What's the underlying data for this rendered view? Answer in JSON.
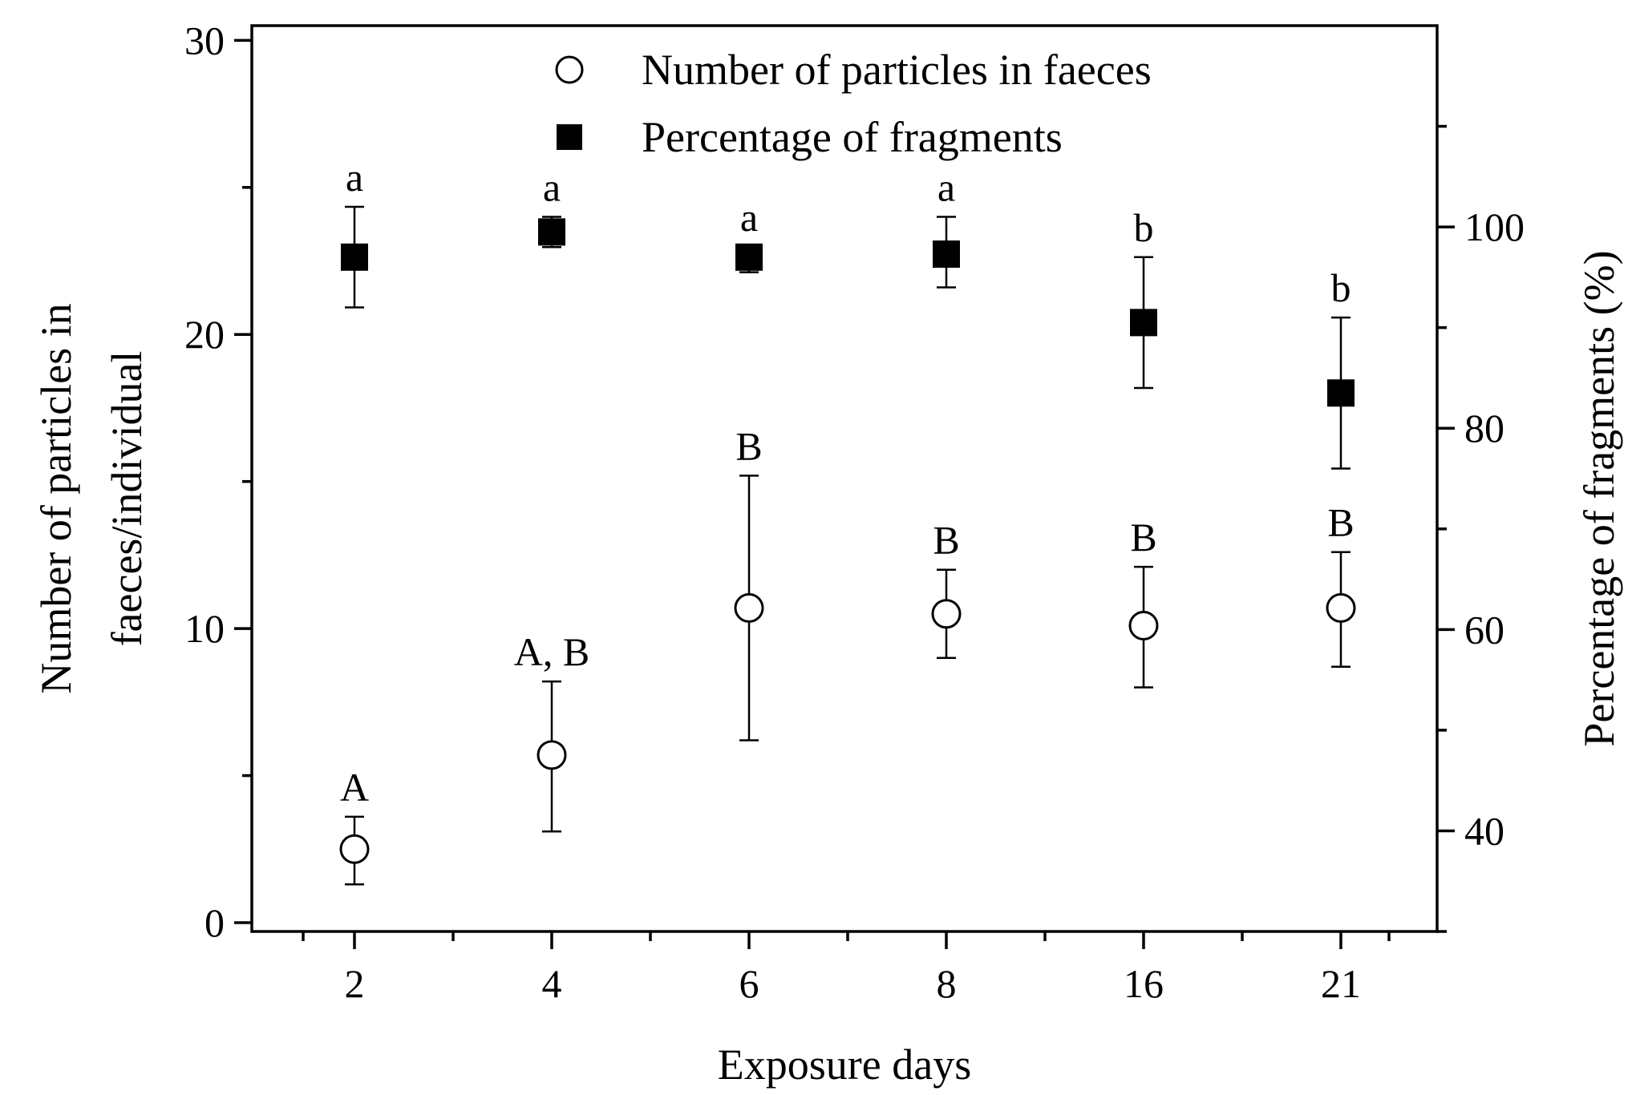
{
  "chart_data": {
    "type": "scatter",
    "x_categories": [
      "2",
      "4",
      "6",
      "8",
      "16",
      "21"
    ],
    "xlabel": "Exposure days",
    "ylabel_left_line1": "Number of particles in",
    "ylabel_left_line2": "faeces/individual",
    "ylabel_right": "Percentage of fragments (%)",
    "y_left": {
      "ylim": [
        -0.3,
        30.5
      ],
      "ticks": [
        0,
        10,
        20,
        30
      ],
      "minor_ticks": [
        5,
        15,
        25
      ]
    },
    "y_right": {
      "ylim": [
        30,
        120
      ],
      "ticks": [
        40,
        60,
        80,
        100
      ],
      "minor_ticks": [
        30,
        50,
        70,
        90,
        110
      ]
    },
    "legend_position": "top",
    "grid": false,
    "series": [
      {
        "name": "Number of particles in faeces",
        "axis": "left",
        "marker": "open-circle",
        "values": [
          2.5,
          5.7,
          10.7,
          10.5,
          10.1,
          10.7
        ],
        "error_upper": [
          3.6,
          8.2,
          15.2,
          12.0,
          12.1,
          12.6
        ],
        "error_lower": [
          1.3,
          3.1,
          6.2,
          9.0,
          8.0,
          8.7
        ],
        "significance": [
          "A",
          "A, B",
          "B",
          "B",
          "B",
          "B"
        ]
      },
      {
        "name": "Percentage of fragments",
        "axis": "right",
        "marker": "filled-square",
        "values": [
          97.0,
          99.5,
          97.0,
          97.3,
          90.5,
          83.5
        ],
        "error_upper": [
          102.0,
          101.0,
          98.0,
          101.0,
          97.0,
          91.0
        ],
        "error_lower": [
          92.0,
          98.0,
          95.5,
          94.0,
          84.0,
          76.0
        ],
        "significance": [
          "a",
          "a",
          "a",
          "a",
          "b",
          "b"
        ]
      }
    ]
  }
}
